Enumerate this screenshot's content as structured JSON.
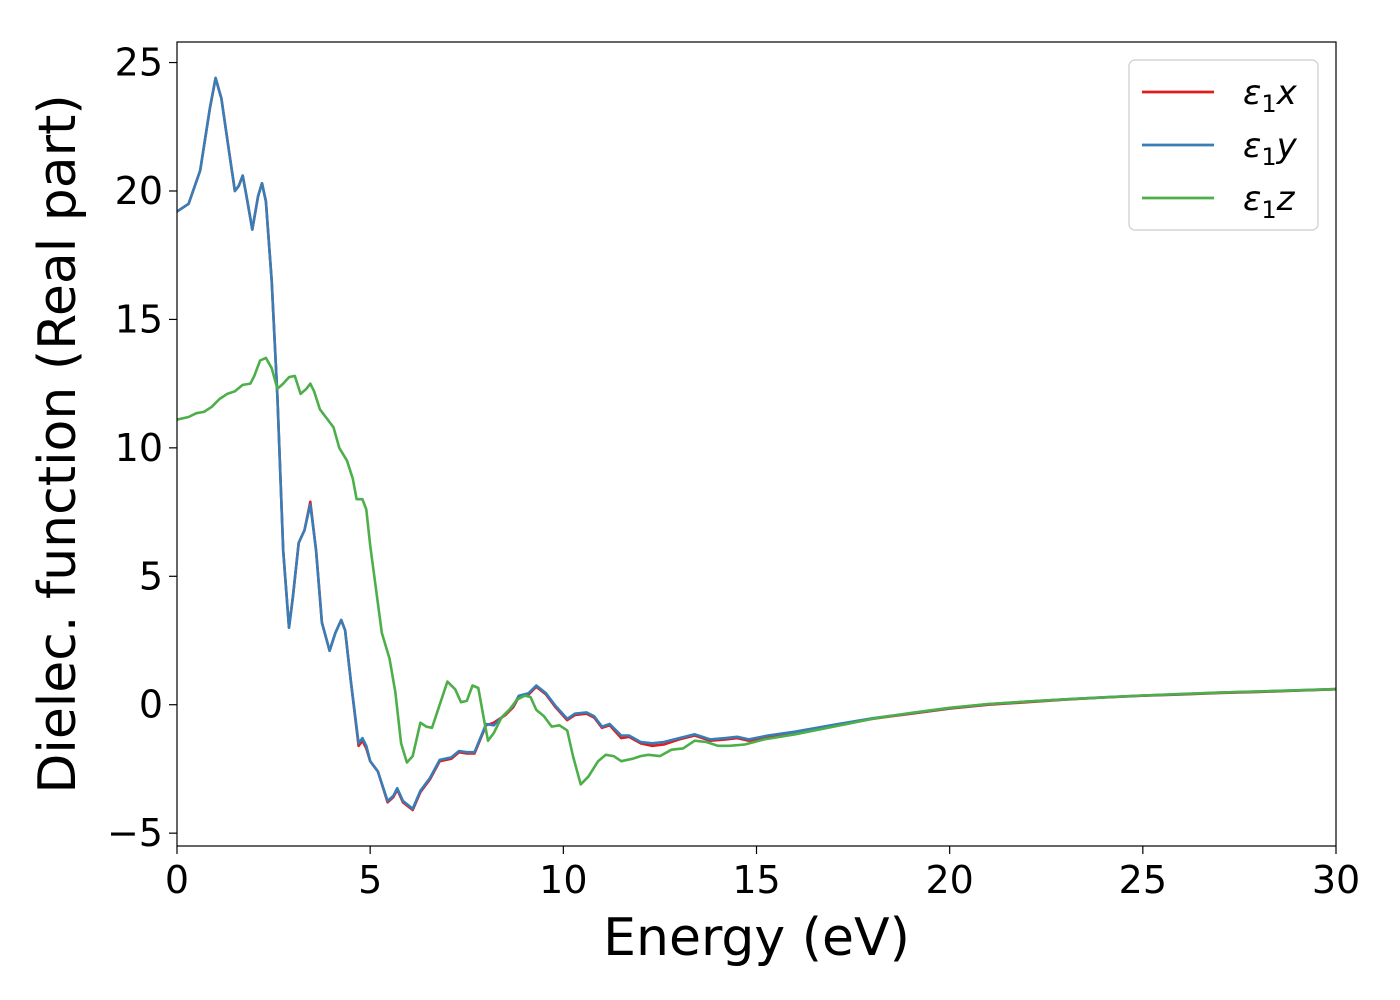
{
  "chart_data": {
    "type": "line",
    "title": "",
    "xlabel": "Energy (eV)",
    "ylabel": "Dielec. function (Real part)",
    "xlim": [
      0,
      30
    ],
    "ylim": [
      -5.5,
      25.8
    ],
    "xticks": [
      0,
      5,
      10,
      15,
      20,
      25,
      30
    ],
    "yticks": [
      -5,
      0,
      5,
      10,
      15,
      20,
      25
    ],
    "ytick_labels": [
      "−5",
      "0",
      "5",
      "10",
      "15",
      "20",
      "25"
    ],
    "grid": false,
    "legend_position": "top-right",
    "series": [
      {
        "name": "ε₁x",
        "legend_main": "ε",
        "legend_sub": "1",
        "legend_var": "x",
        "color": "#e41a1c",
        "points": [
          [
            0,
            19.2
          ],
          [
            0.3,
            19.5
          ],
          [
            0.6,
            20.8
          ],
          [
            0.85,
            23.2
          ],
          [
            1.0,
            24.4
          ],
          [
            1.15,
            23.6
          ],
          [
            1.35,
            21.5
          ],
          [
            1.5,
            20.0
          ],
          [
            1.6,
            20.2
          ],
          [
            1.7,
            20.6
          ],
          [
            1.8,
            19.8
          ],
          [
            1.95,
            18.5
          ],
          [
            2.1,
            19.8
          ],
          [
            2.2,
            20.3
          ],
          [
            2.3,
            19.6
          ],
          [
            2.45,
            16.5
          ],
          [
            2.6,
            12.0
          ],
          [
            2.75,
            6.0
          ],
          [
            2.9,
            3.0
          ],
          [
            3.0,
            4.2
          ],
          [
            3.15,
            6.3
          ],
          [
            3.3,
            6.8
          ],
          [
            3.45,
            7.9
          ],
          [
            3.6,
            6.0
          ],
          [
            3.75,
            3.2
          ],
          [
            3.95,
            2.1
          ],
          [
            4.1,
            2.8
          ],
          [
            4.25,
            3.3
          ],
          [
            4.35,
            2.9
          ],
          [
            4.5,
            0.9
          ],
          [
            4.7,
            -1.6
          ],
          [
            4.8,
            -1.4
          ],
          [
            4.9,
            -1.7
          ],
          [
            5.0,
            -2.2
          ],
          [
            5.2,
            -2.6
          ],
          [
            5.45,
            -3.8
          ],
          [
            5.6,
            -3.6
          ],
          [
            5.7,
            -3.3
          ],
          [
            5.85,
            -3.8
          ],
          [
            6.1,
            -4.1
          ],
          [
            6.3,
            -3.4
          ],
          [
            6.55,
            -2.9
          ],
          [
            6.8,
            -2.2
          ],
          [
            7.1,
            -2.1
          ],
          [
            7.3,
            -1.85
          ],
          [
            7.5,
            -1.9
          ],
          [
            7.7,
            -1.9
          ],
          [
            8.0,
            -0.8
          ],
          [
            8.2,
            -0.7
          ],
          [
            8.5,
            -0.4
          ],
          [
            8.7,
            -0.1
          ],
          [
            8.85,
            0.3
          ],
          [
            9.1,
            0.4
          ],
          [
            9.3,
            0.7
          ],
          [
            9.55,
            0.4
          ],
          [
            9.8,
            -0.1
          ],
          [
            10.1,
            -0.6
          ],
          [
            10.3,
            -0.4
          ],
          [
            10.6,
            -0.35
          ],
          [
            10.8,
            -0.5
          ],
          [
            11.0,
            -0.9
          ],
          [
            11.2,
            -0.8
          ],
          [
            11.5,
            -1.3
          ],
          [
            11.7,
            -1.25
          ],
          [
            12.0,
            -1.5
          ],
          [
            12.3,
            -1.6
          ],
          [
            12.6,
            -1.55
          ],
          [
            13.0,
            -1.35
          ],
          [
            13.4,
            -1.2
          ],
          [
            13.8,
            -1.4
          ],
          [
            14.2,
            -1.35
          ],
          [
            14.5,
            -1.3
          ],
          [
            14.8,
            -1.4
          ],
          [
            15.3,
            -1.25
          ],
          [
            16.0,
            -1.1
          ],
          [
            17.0,
            -0.8
          ],
          [
            18.0,
            -0.55
          ],
          [
            19.0,
            -0.35
          ],
          [
            20.0,
            -0.15
          ],
          [
            21.0,
            0.0
          ],
          [
            22.0,
            0.1
          ],
          [
            23.0,
            0.2
          ],
          [
            24.0,
            0.28
          ],
          [
            25.0,
            0.35
          ],
          [
            26.0,
            0.4
          ],
          [
            27.0,
            0.46
          ],
          [
            28.0,
            0.5
          ],
          [
            29.0,
            0.55
          ],
          [
            30.0,
            0.6
          ]
        ]
      },
      {
        "name": "ε₁y",
        "legend_main": "ε",
        "legend_sub": "1",
        "legend_var": "y",
        "color": "#377eb8",
        "points": [
          [
            0,
            19.2
          ],
          [
            0.3,
            19.5
          ],
          [
            0.6,
            20.8
          ],
          [
            0.85,
            23.2
          ],
          [
            1.0,
            24.4
          ],
          [
            1.15,
            23.6
          ],
          [
            1.35,
            21.5
          ],
          [
            1.5,
            20.0
          ],
          [
            1.6,
            20.2
          ],
          [
            1.7,
            20.6
          ],
          [
            1.8,
            19.8
          ],
          [
            1.95,
            18.5
          ],
          [
            2.1,
            19.8
          ],
          [
            2.2,
            20.3
          ],
          [
            2.3,
            19.6
          ],
          [
            2.45,
            16.5
          ],
          [
            2.6,
            12.0
          ],
          [
            2.75,
            6.0
          ],
          [
            2.9,
            3.0
          ],
          [
            3.0,
            4.2
          ],
          [
            3.15,
            6.3
          ],
          [
            3.3,
            6.8
          ],
          [
            3.45,
            7.8
          ],
          [
            3.6,
            6.0
          ],
          [
            3.75,
            3.2
          ],
          [
            3.95,
            2.1
          ],
          [
            4.1,
            2.8
          ],
          [
            4.25,
            3.3
          ],
          [
            4.35,
            2.9
          ],
          [
            4.5,
            0.9
          ],
          [
            4.7,
            -1.5
          ],
          [
            4.8,
            -1.3
          ],
          [
            4.9,
            -1.6
          ],
          [
            5.0,
            -2.2
          ],
          [
            5.2,
            -2.6
          ],
          [
            5.45,
            -3.75
          ],
          [
            5.6,
            -3.55
          ],
          [
            5.7,
            -3.25
          ],
          [
            5.85,
            -3.75
          ],
          [
            6.1,
            -4.05
          ],
          [
            6.3,
            -3.35
          ],
          [
            6.55,
            -2.85
          ],
          [
            6.8,
            -2.15
          ],
          [
            7.1,
            -2.05
          ],
          [
            7.3,
            -1.8
          ],
          [
            7.5,
            -1.85
          ],
          [
            7.7,
            -1.85
          ],
          [
            8.0,
            -0.75
          ],
          [
            8.2,
            -0.8
          ],
          [
            8.5,
            -0.35
          ],
          [
            8.7,
            -0.05
          ],
          [
            8.85,
            0.35
          ],
          [
            9.1,
            0.45
          ],
          [
            9.3,
            0.75
          ],
          [
            9.55,
            0.45
          ],
          [
            9.8,
            -0.05
          ],
          [
            10.1,
            -0.55
          ],
          [
            10.3,
            -0.35
          ],
          [
            10.6,
            -0.3
          ],
          [
            10.8,
            -0.45
          ],
          [
            11.0,
            -0.85
          ],
          [
            11.2,
            -0.75
          ],
          [
            11.5,
            -1.2
          ],
          [
            11.7,
            -1.2
          ],
          [
            12.0,
            -1.45
          ],
          [
            12.3,
            -1.5
          ],
          [
            12.6,
            -1.45
          ],
          [
            13.0,
            -1.3
          ],
          [
            13.4,
            -1.15
          ],
          [
            13.8,
            -1.35
          ],
          [
            14.2,
            -1.3
          ],
          [
            14.5,
            -1.25
          ],
          [
            14.8,
            -1.35
          ],
          [
            15.3,
            -1.2
          ],
          [
            16.0,
            -1.05
          ],
          [
            17.0,
            -0.78
          ],
          [
            18.0,
            -0.53
          ],
          [
            19.0,
            -0.33
          ],
          [
            20.0,
            -0.13
          ],
          [
            21.0,
            0.02
          ],
          [
            22.0,
            0.12
          ],
          [
            23.0,
            0.21
          ],
          [
            24.0,
            0.29
          ],
          [
            25.0,
            0.36
          ],
          [
            26.0,
            0.41
          ],
          [
            27.0,
            0.47
          ],
          [
            28.0,
            0.51
          ],
          [
            29.0,
            0.56
          ],
          [
            30.0,
            0.61
          ]
        ]
      },
      {
        "name": "ε₁z",
        "legend_main": "ε",
        "legend_sub": "1",
        "legend_var": "z",
        "color": "#4daf4a",
        "points": [
          [
            0,
            11.1
          ],
          [
            0.3,
            11.2
          ],
          [
            0.5,
            11.35
          ],
          [
            0.7,
            11.4
          ],
          [
            0.9,
            11.6
          ],
          [
            1.1,
            11.9
          ],
          [
            1.3,
            12.1
          ],
          [
            1.5,
            12.2
          ],
          [
            1.7,
            12.45
          ],
          [
            1.9,
            12.5
          ],
          [
            2.0,
            12.8
          ],
          [
            2.15,
            13.4
          ],
          [
            2.3,
            13.5
          ],
          [
            2.45,
            13.1
          ],
          [
            2.6,
            12.3
          ],
          [
            2.75,
            12.5
          ],
          [
            2.9,
            12.75
          ],
          [
            3.05,
            12.8
          ],
          [
            3.2,
            12.1
          ],
          [
            3.35,
            12.3
          ],
          [
            3.45,
            12.5
          ],
          [
            3.55,
            12.2
          ],
          [
            3.7,
            11.5
          ],
          [
            3.9,
            11.1
          ],
          [
            4.05,
            10.8
          ],
          [
            4.2,
            10.0
          ],
          [
            4.4,
            9.5
          ],
          [
            4.55,
            8.8
          ],
          [
            4.65,
            8.0
          ],
          [
            4.8,
            8.0
          ],
          [
            4.9,
            7.6
          ],
          [
            5.0,
            6.2
          ],
          [
            5.15,
            4.5
          ],
          [
            5.3,
            2.8
          ],
          [
            5.5,
            1.8
          ],
          [
            5.65,
            0.5
          ],
          [
            5.8,
            -1.5
          ],
          [
            5.95,
            -2.25
          ],
          [
            6.1,
            -2.0
          ],
          [
            6.3,
            -0.7
          ],
          [
            6.45,
            -0.85
          ],
          [
            6.6,
            -0.9
          ],
          [
            6.8,
            0.0
          ],
          [
            7.0,
            0.9
          ],
          [
            7.2,
            0.6
          ],
          [
            7.35,
            0.1
          ],
          [
            7.5,
            0.15
          ],
          [
            7.65,
            0.75
          ],
          [
            7.8,
            0.65
          ],
          [
            7.95,
            -0.6
          ],
          [
            8.05,
            -1.4
          ],
          [
            8.2,
            -1.1
          ],
          [
            8.4,
            -0.5
          ],
          [
            8.6,
            -0.2
          ],
          [
            8.8,
            0.2
          ],
          [
            9.0,
            0.35
          ],
          [
            9.15,
            0.3
          ],
          [
            9.3,
            -0.2
          ],
          [
            9.5,
            -0.45
          ],
          [
            9.7,
            -0.85
          ],
          [
            9.9,
            -0.8
          ],
          [
            10.1,
            -1.0
          ],
          [
            10.25,
            -2.0
          ],
          [
            10.45,
            -3.1
          ],
          [
            10.65,
            -2.8
          ],
          [
            10.9,
            -2.2
          ],
          [
            11.1,
            -1.95
          ],
          [
            11.3,
            -2.0
          ],
          [
            11.5,
            -2.2
          ],
          [
            11.8,
            -2.1
          ],
          [
            12.0,
            -2.0
          ],
          [
            12.2,
            -1.95
          ],
          [
            12.5,
            -2.0
          ],
          [
            12.8,
            -1.75
          ],
          [
            13.1,
            -1.7
          ],
          [
            13.4,
            -1.4
          ],
          [
            13.7,
            -1.45
          ],
          [
            14.0,
            -1.6
          ],
          [
            14.3,
            -1.6
          ],
          [
            14.7,
            -1.55
          ],
          [
            15.2,
            -1.35
          ],
          [
            16.0,
            -1.15
          ],
          [
            17.0,
            -0.85
          ],
          [
            18.0,
            -0.55
          ],
          [
            19.0,
            -0.32
          ],
          [
            20.0,
            -0.12
          ],
          [
            21.0,
            0.03
          ],
          [
            22.0,
            0.12
          ],
          [
            23.0,
            0.21
          ],
          [
            24.0,
            0.29
          ],
          [
            25.0,
            0.36
          ],
          [
            26.0,
            0.42
          ],
          [
            27.0,
            0.47
          ],
          [
            28.0,
            0.52
          ],
          [
            29.0,
            0.56
          ],
          [
            30.0,
            0.61
          ]
        ]
      }
    ]
  }
}
